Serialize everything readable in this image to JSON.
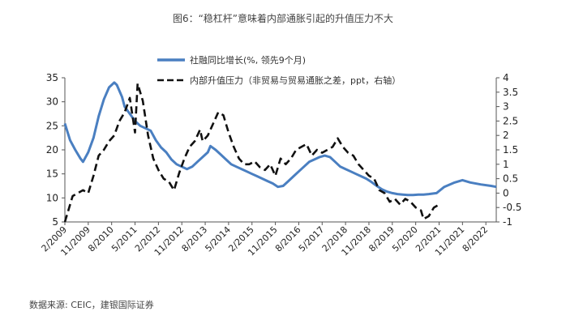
{
  "title": "图6：“稳杠杆”意味着内部通胀引起的升值压力不大",
  "source": "数据来源: CEIC，建银国际证券",
  "chart_data": {
    "type": "line",
    "x_labels": [
      "2/2009",
      "11/2009",
      "8/2010",
      "5/2011",
      "2/2012",
      "11/2012",
      "8/2013",
      "5/2014",
      "2/2015",
      "11/2015",
      "8/2016",
      "5/2017",
      "2/2018",
      "11/2018",
      "8/2019",
      "5/2020",
      "2/2021",
      "11/2021",
      "8/2022"
    ],
    "x_range": [
      "2009-02",
      "2022-12"
    ],
    "y_left_range": [
      5,
      35
    ],
    "y_left_ticks": [
      5,
      10,
      15,
      20,
      25,
      30,
      35
    ],
    "y_right_range": [
      -1,
      4
    ],
    "y_right_ticks": [
      "-1",
      "-0.5",
      "0",
      "0.5",
      "1",
      "1.5",
      "2",
      "2.5",
      "3",
      "3.5",
      "4"
    ],
    "series": [
      {
        "name": "社融同比增长(%, 领先9个月)",
        "axis": "left",
        "style": "solid",
        "color": "#4a7fc1",
        "points": [
          [
            "2009-02",
            25.5
          ],
          [
            "2009-04",
            22.0
          ],
          [
            "2009-06",
            20.0
          ],
          [
            "2009-08",
            18.2
          ],
          [
            "2009-09",
            17.5
          ],
          [
            "2009-11",
            19.5
          ],
          [
            "2010-01",
            22.5
          ],
          [
            "2010-03",
            27.0
          ],
          [
            "2010-05",
            30.5
          ],
          [
            "2010-07",
            33.0
          ],
          [
            "2010-09",
            34.0
          ],
          [
            "2010-10",
            33.5
          ],
          [
            "2010-12",
            31.0
          ],
          [
            "2011-01",
            29.0
          ],
          [
            "2011-03",
            27.5
          ],
          [
            "2011-05",
            26.0
          ],
          [
            "2011-07",
            25.0
          ],
          [
            "2011-09",
            24.5
          ],
          [
            "2011-11",
            24.0
          ],
          [
            "2012-01",
            22.0
          ],
          [
            "2012-03",
            20.5
          ],
          [
            "2012-05",
            19.5
          ],
          [
            "2012-07",
            18.0
          ],
          [
            "2012-09",
            17.0
          ],
          [
            "2012-11",
            16.5
          ],
          [
            "2013-01",
            16.0
          ],
          [
            "2013-03",
            16.5
          ],
          [
            "2013-05",
            17.5
          ],
          [
            "2013-07",
            18.5
          ],
          [
            "2013-09",
            19.5
          ],
          [
            "2013-10",
            20.8
          ],
          [
            "2013-12",
            20.0
          ],
          [
            "2014-02",
            19.0
          ],
          [
            "2014-04",
            18.0
          ],
          [
            "2014-06",
            17.0
          ],
          [
            "2014-08",
            16.5
          ],
          [
            "2014-10",
            16.0
          ],
          [
            "2014-12",
            15.5
          ],
          [
            "2015-02",
            15.0
          ],
          [
            "2015-04",
            14.5
          ],
          [
            "2015-06",
            14.0
          ],
          [
            "2015-08",
            13.5
          ],
          [
            "2015-10",
            13.0
          ],
          [
            "2015-12",
            12.3
          ],
          [
            "2016-02",
            12.5
          ],
          [
            "2016-04",
            13.5
          ],
          [
            "2016-06",
            14.5
          ],
          [
            "2016-08",
            15.5
          ],
          [
            "2016-10",
            16.5
          ],
          [
            "2016-12",
            17.5
          ],
          [
            "2017-02",
            18.0
          ],
          [
            "2017-04",
            18.5
          ],
          [
            "2017-06",
            18.8
          ],
          [
            "2017-08",
            18.5
          ],
          [
            "2017-10",
            17.5
          ],
          [
            "2017-12",
            16.5
          ],
          [
            "2018-02",
            16.0
          ],
          [
            "2018-04",
            15.5
          ],
          [
            "2018-06",
            15.0
          ],
          [
            "2018-08",
            14.5
          ],
          [
            "2018-10",
            14.0
          ],
          [
            "2018-12",
            13.3
          ],
          [
            "2019-02",
            12.5
          ],
          [
            "2019-04",
            11.8
          ],
          [
            "2019-06",
            11.3
          ],
          [
            "2019-08",
            11.0
          ],
          [
            "2019-10",
            10.8
          ],
          [
            "2019-12",
            10.7
          ],
          [
            "2020-02",
            10.6
          ],
          [
            "2020-04",
            10.6
          ],
          [
            "2020-06",
            10.7
          ],
          [
            "2020-08",
            10.7
          ],
          [
            "2020-10",
            10.8
          ],
          [
            "2021-01",
            11.0
          ],
          [
            "2021-04",
            12.3
          ],
          [
            "2021-08",
            13.2
          ],
          [
            "2021-11",
            13.7
          ],
          [
            "2022-02",
            13.2
          ],
          [
            "2022-06",
            12.8
          ],
          [
            "2022-10",
            12.5
          ],
          [
            "2022-12",
            12.3
          ]
        ]
      },
      {
        "name": "内部升值压力（非贸易与贸易通胀之差，ppt，右轴）",
        "axis": "right",
        "style": "dashed",
        "color": "#111111",
        "points": [
          [
            "2009-02",
            -1.0
          ],
          [
            "2009-05",
            -0.1
          ],
          [
            "2009-07",
            0.0
          ],
          [
            "2009-09",
            0.1
          ],
          [
            "2009-11",
            0.0
          ],
          [
            "2010-01",
            0.6
          ],
          [
            "2010-03",
            1.3
          ],
          [
            "2010-05",
            1.5
          ],
          [
            "2010-07",
            1.8
          ],
          [
            "2010-09",
            2.0
          ],
          [
            "2010-11",
            2.5
          ],
          [
            "2011-01",
            2.8
          ],
          [
            "2011-03",
            3.3
          ],
          [
            "2011-05",
            2.1
          ],
          [
            "2011-06",
            3.8
          ],
          [
            "2011-08",
            3.2
          ],
          [
            "2011-10",
            2.0
          ],
          [
            "2011-12",
            1.2
          ],
          [
            "2012-02",
            0.8
          ],
          [
            "2012-04",
            0.5
          ],
          [
            "2012-06",
            0.4
          ],
          [
            "2012-08",
            0.1
          ],
          [
            "2012-10",
            0.7
          ],
          [
            "2012-12",
            1.2
          ],
          [
            "2013-02",
            1.6
          ],
          [
            "2013-04",
            1.8
          ],
          [
            "2013-06",
            2.2
          ],
          [
            "2013-07",
            1.8
          ],
          [
            "2013-09",
            2.0
          ],
          [
            "2013-11",
            2.4
          ],
          [
            "2014-01",
            2.8
          ],
          [
            "2014-03",
            2.7
          ],
          [
            "2014-05",
            2.1
          ],
          [
            "2014-07",
            1.6
          ],
          [
            "2014-09",
            1.2
          ],
          [
            "2014-11",
            1.0
          ],
          [
            "2015-01",
            1.0
          ],
          [
            "2015-03",
            1.1
          ],
          [
            "2015-05",
            0.9
          ],
          [
            "2015-07",
            0.8
          ],
          [
            "2015-09",
            1.0
          ],
          [
            "2015-11",
            0.6
          ],
          [
            "2016-01",
            1.2
          ],
          [
            "2016-03",
            1.0
          ],
          [
            "2016-05",
            1.2
          ],
          [
            "2016-07",
            1.5
          ],
          [
            "2016-09",
            1.6
          ],
          [
            "2016-11",
            1.7
          ],
          [
            "2017-01",
            1.3
          ],
          [
            "2017-03",
            1.5
          ],
          [
            "2017-05",
            1.4
          ],
          [
            "2017-07",
            1.5
          ],
          [
            "2017-09",
            1.6
          ],
          [
            "2017-11",
            1.9
          ],
          [
            "2018-01",
            1.6
          ],
          [
            "2018-03",
            1.4
          ],
          [
            "2018-05",
            1.3
          ],
          [
            "2018-07",
            1.0
          ],
          [
            "2018-09",
            0.8
          ],
          [
            "2018-11",
            0.6
          ],
          [
            "2019-01",
            0.5
          ],
          [
            "2019-03",
            0.1
          ],
          [
            "2019-05",
            0.0
          ],
          [
            "2019-07",
            -0.3
          ],
          [
            "2019-09",
            -0.2
          ],
          [
            "2019-11",
            -0.4
          ],
          [
            "2020-01",
            -0.2
          ],
          [
            "2020-03",
            -0.3
          ],
          [
            "2020-05",
            -0.5
          ],
          [
            "2020-07",
            -0.6
          ],
          [
            "2020-08",
            -0.9
          ],
          [
            "2020-10",
            -0.8
          ],
          [
            "2020-12",
            -0.5
          ],
          [
            "2021-02",
            -0.4
          ]
        ]
      }
    ]
  }
}
